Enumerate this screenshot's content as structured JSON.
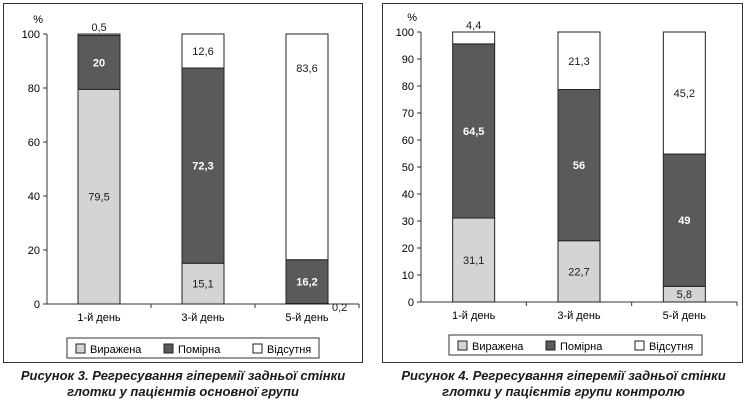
{
  "colors": {
    "vyrazhena": "#d4d4d4",
    "pomirna": "#5a5a5a",
    "vidsutnia": "#ffffff"
  },
  "chart_data": [
    {
      "type": "bar",
      "stacked": true,
      "unit_label": "%",
      "categories": [
        "1-й день",
        "3-й день",
        "5-й день"
      ],
      "ylim": [
        0,
        100
      ],
      "yticks": [
        0,
        20,
        40,
        60,
        80,
        100
      ],
      "legend": "bottom",
      "grid": false,
      "series": [
        {
          "name": "Виражена",
          "color": "#d4d4d4",
          "values": [
            79.5,
            15.1,
            0.2
          ],
          "labels": [
            "79,5",
            "15,1",
            "0,2"
          ]
        },
        {
          "name": "Помірна",
          "color": "#5a5a5a",
          "values": [
            20,
            72.3,
            16.2
          ],
          "labels": [
            "20",
            "72,3",
            "16,2"
          ]
        },
        {
          "name": "Відсутня",
          "color": "#ffffff",
          "values": [
            0.5,
            12.6,
            83.6
          ],
          "labels": [
            "0,5",
            "12,6",
            "83,6"
          ]
        }
      ],
      "caption_lines": [
        "Рисунок 3. Регресування гіперемії задньої стінки",
        "глотки у пацієнтів основної групи"
      ]
    },
    {
      "type": "bar",
      "stacked": true,
      "unit_label": "%",
      "categories": [
        "1-й день",
        "3-й день",
        "5-й день"
      ],
      "ylim": [
        0,
        100
      ],
      "yticks": [
        0,
        10,
        20,
        30,
        40,
        50,
        60,
        70,
        80,
        90,
        100
      ],
      "legend": "bottom",
      "grid": false,
      "series": [
        {
          "name": "Виражена",
          "color": "#d4d4d4",
          "values": [
            31.1,
            22.7,
            5.8
          ],
          "labels": [
            "31,1",
            "22,7",
            "5,8"
          ]
        },
        {
          "name": "Помірна",
          "color": "#5a5a5a",
          "values": [
            64.5,
            56,
            49
          ],
          "labels": [
            "64,5",
            "56",
            "49"
          ]
        },
        {
          "name": "Відсутня",
          "color": "#ffffff",
          "values": [
            4.4,
            21.3,
            45.2
          ],
          "labels": [
            "4,4",
            "21,3",
            "45,2"
          ]
        }
      ],
      "caption_lines": [
        "Рисунок 4. Регресування гіперемії задньої стінки",
        "глотки у пацієнтів групи контролю"
      ]
    }
  ]
}
